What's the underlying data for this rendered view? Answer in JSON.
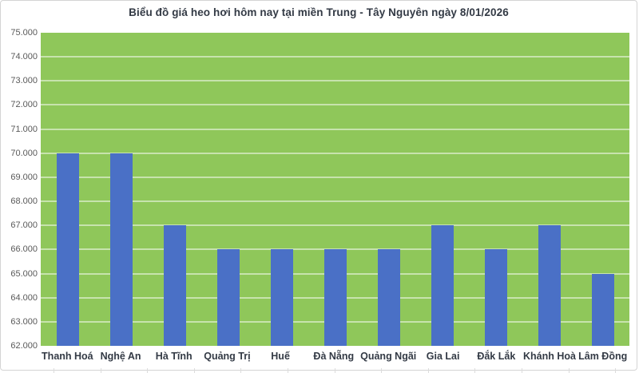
{
  "chart_data": {
    "type": "bar",
    "title": "Biểu đồ giá heo hơi hôm nay tại miền Trung - Tây Nguyên ngày 8/01/2026",
    "categories": [
      "Thanh Hoá",
      "Nghệ An",
      "Hà Tĩnh",
      "Quảng Trị",
      "Huế",
      "Đà Nẵng",
      "Quảng Ngãi",
      "Gia Lai",
      "Đắk Lắk",
      "Khánh Hoà",
      "Lâm Đồng"
    ],
    "values": [
      70000,
      70000,
      67000,
      66000,
      66000,
      66000,
      66000,
      67000,
      66000,
      67000,
      65000
    ],
    "xlabel": "",
    "ylabel": "",
    "ylim": [
      62000,
      75000
    ],
    "y_tick_step": 1000,
    "y_tick_labels": [
      "62.000",
      "63.000",
      "64.000",
      "65.000",
      "66.000",
      "67.000",
      "68.000",
      "69.000",
      "70.000",
      "71.000",
      "72.000",
      "73.000",
      "74.000",
      "75.000"
    ],
    "grid": true,
    "legend": "none",
    "colors": {
      "bar": "#4a70c6",
      "plot_background": "#8fc75a",
      "gridline": "rgba(255,255,255,0.5)",
      "title_text": "#333a45",
      "x_label_text": "#333a45",
      "y_label_text": "#595959",
      "frame_border": "#d4d4d4"
    }
  }
}
